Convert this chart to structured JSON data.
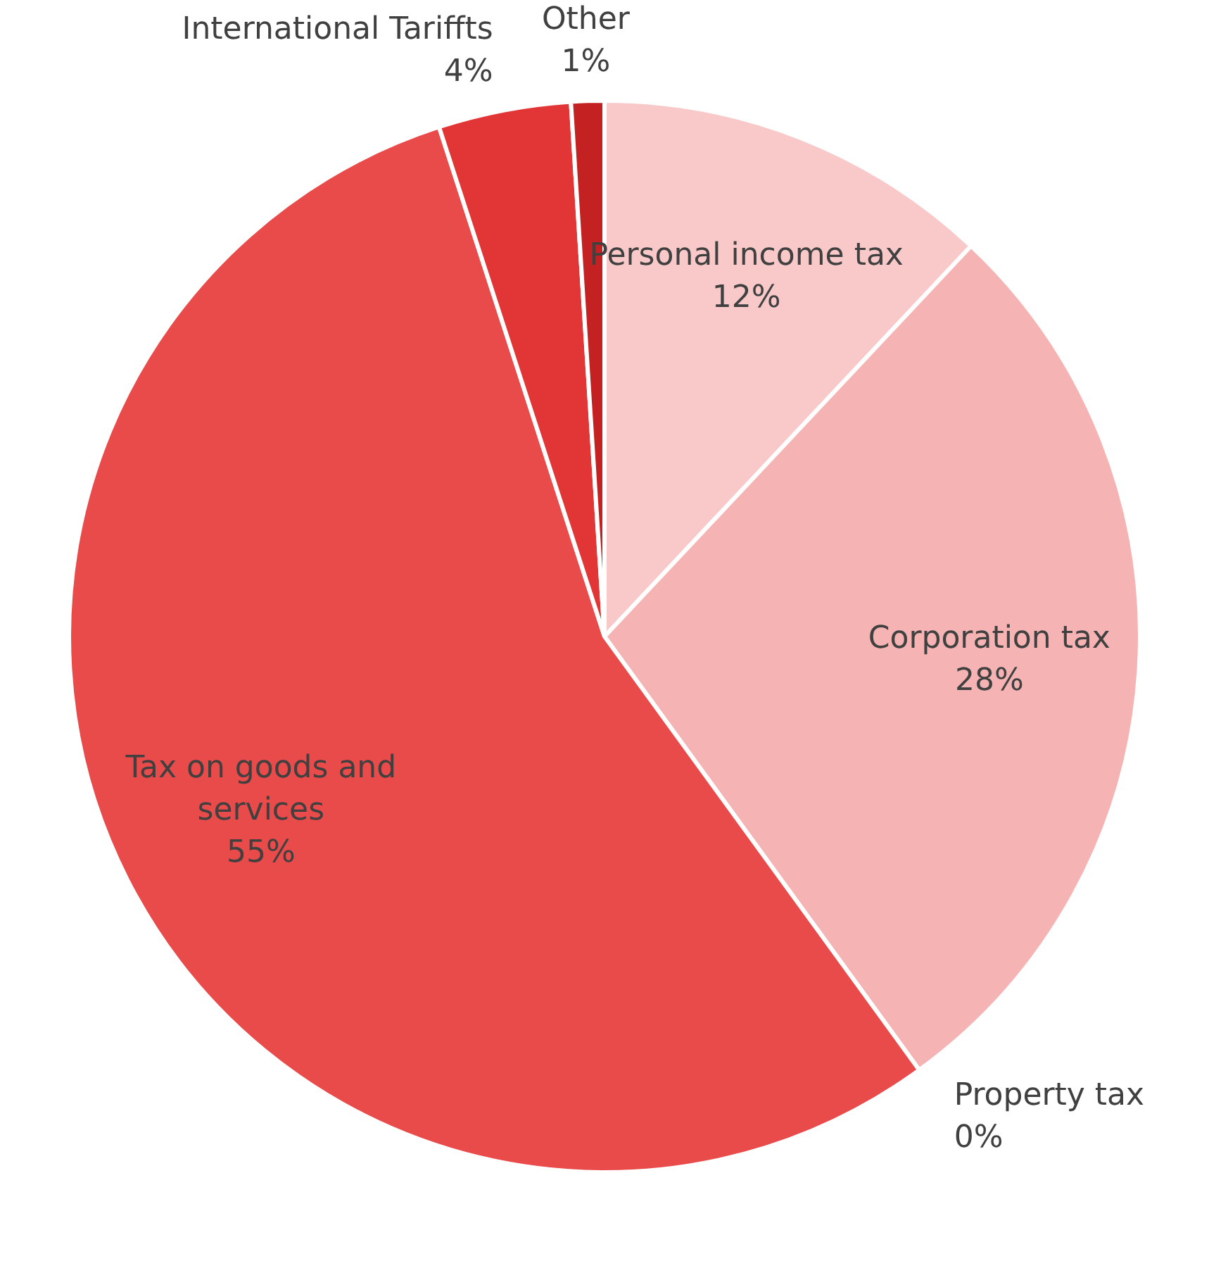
{
  "chart_data": {
    "type": "pie",
    "categories": [
      "Personal income tax",
      "Corporation tax",
      "Property tax",
      "Tax on goods and services",
      "International Tariffts",
      "Other"
    ],
    "values": [
      12,
      28,
      0,
      55,
      4,
      1
    ],
    "colors": [
      "#f9c9c9",
      "#f5b3b3",
      "#f09a9a",
      "#e94a4a",
      "#e23636",
      "#c42222"
    ],
    "value_labels": [
      "12%",
      "28%",
      "0%",
      "55%",
      "4%",
      "1%"
    ],
    "legend": false
  }
}
